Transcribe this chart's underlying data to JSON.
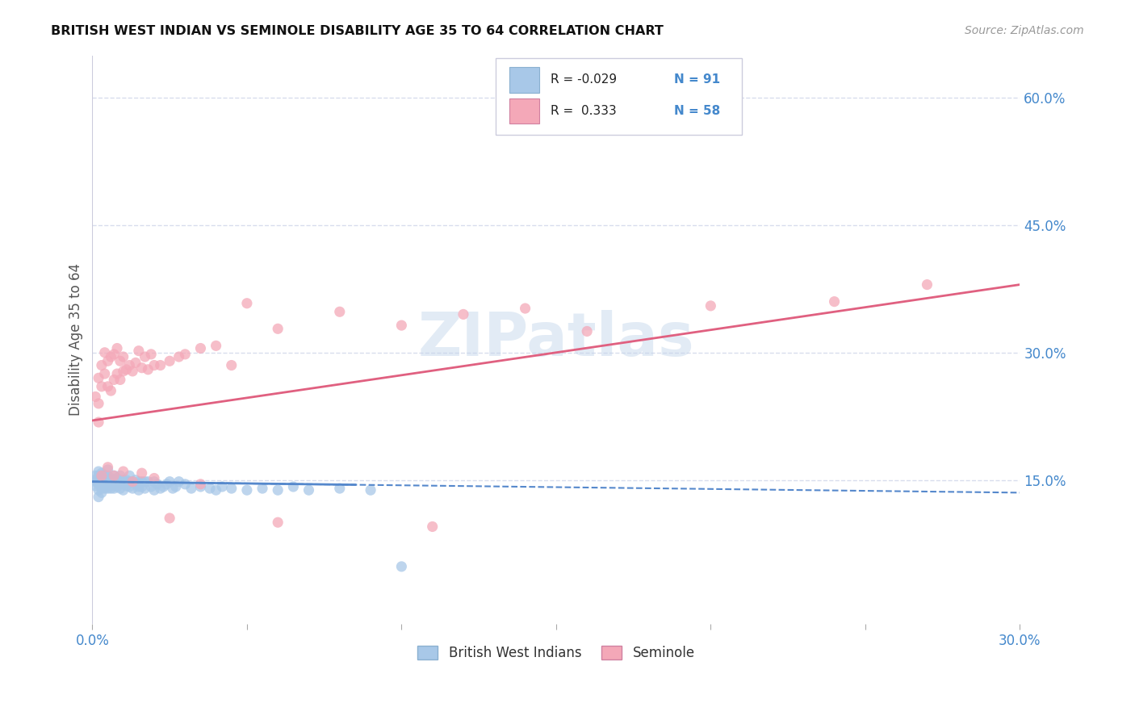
{
  "title": "BRITISH WEST INDIAN VS SEMINOLE DISABILITY AGE 35 TO 64 CORRELATION CHART",
  "source": "Source: ZipAtlas.com",
  "ylabel": "Disability Age 35 to 64",
  "xlim": [
    0.0,
    0.3
  ],
  "ylim": [
    -0.02,
    0.65
  ],
  "xticks": [
    0.0,
    0.05,
    0.1,
    0.15,
    0.2,
    0.25,
    0.3
  ],
  "xtick_labels": [
    "0.0%",
    "",
    "",
    "",
    "",
    "",
    "30.0%"
  ],
  "yticks": [
    0.15,
    0.3,
    0.45,
    0.6
  ],
  "ytick_labels": [
    "15.0%",
    "30.0%",
    "45.0%",
    "60.0%"
  ],
  "watermark": "ZIPatlas",
  "color_bwi": "#a8c8e8",
  "color_seminole": "#f4a8b8",
  "color_bwi_line": "#5588cc",
  "color_seminole_line": "#e06080",
  "color_axis_labels": "#4488cc",
  "grid_color": "#d8dded",
  "bwi_scatter_x": [
    0.001,
    0.001,
    0.001,
    0.001,
    0.002,
    0.002,
    0.002,
    0.002,
    0.002,
    0.002,
    0.002,
    0.003,
    0.003,
    0.003,
    0.003,
    0.003,
    0.003,
    0.003,
    0.004,
    0.004,
    0.004,
    0.004,
    0.004,
    0.005,
    0.005,
    0.005,
    0.005,
    0.005,
    0.005,
    0.006,
    0.006,
    0.006,
    0.006,
    0.007,
    0.007,
    0.007,
    0.007,
    0.007,
    0.008,
    0.008,
    0.008,
    0.009,
    0.009,
    0.009,
    0.01,
    0.01,
    0.01,
    0.01,
    0.011,
    0.011,
    0.012,
    0.012,
    0.012,
    0.013,
    0.013,
    0.014,
    0.014,
    0.015,
    0.015,
    0.015,
    0.016,
    0.016,
    0.017,
    0.017,
    0.018,
    0.019,
    0.02,
    0.02,
    0.021,
    0.022,
    0.023,
    0.024,
    0.025,
    0.026,
    0.027,
    0.028,
    0.03,
    0.032,
    0.035,
    0.038,
    0.04,
    0.042,
    0.045,
    0.05,
    0.055,
    0.06,
    0.065,
    0.07,
    0.08,
    0.09,
    0.1
  ],
  "bwi_scatter_y": [
    0.15,
    0.148,
    0.155,
    0.143,
    0.152,
    0.148,
    0.155,
    0.145,
    0.16,
    0.138,
    0.13,
    0.15,
    0.145,
    0.155,
    0.14,
    0.148,
    0.158,
    0.135,
    0.15,
    0.145,
    0.148,
    0.155,
    0.14,
    0.15,
    0.143,
    0.148,
    0.155,
    0.14,
    0.162,
    0.148,
    0.152,
    0.145,
    0.14,
    0.15,
    0.145,
    0.148,
    0.14,
    0.155,
    0.148,
    0.152,
    0.142,
    0.148,
    0.14,
    0.155,
    0.15,
    0.145,
    0.148,
    0.138,
    0.15,
    0.143,
    0.148,
    0.142,
    0.155,
    0.148,
    0.14,
    0.15,
    0.145,
    0.148,
    0.142,
    0.138,
    0.148,
    0.142,
    0.148,
    0.14,
    0.148,
    0.142,
    0.148,
    0.138,
    0.145,
    0.14,
    0.142,
    0.145,
    0.148,
    0.14,
    0.142,
    0.148,
    0.145,
    0.14,
    0.142,
    0.14,
    0.138,
    0.142,
    0.14,
    0.138,
    0.14,
    0.138,
    0.142,
    0.138,
    0.14,
    0.138,
    0.048
  ],
  "seminole_scatter_x": [
    0.001,
    0.002,
    0.002,
    0.003,
    0.003,
    0.004,
    0.004,
    0.005,
    0.005,
    0.006,
    0.006,
    0.007,
    0.007,
    0.008,
    0.008,
    0.009,
    0.009,
    0.01,
    0.01,
    0.011,
    0.012,
    0.013,
    0.014,
    0.015,
    0.016,
    0.017,
    0.018,
    0.019,
    0.02,
    0.022,
    0.025,
    0.028,
    0.03,
    0.035,
    0.04,
    0.045,
    0.05,
    0.06,
    0.08,
    0.1,
    0.12,
    0.14,
    0.16,
    0.2,
    0.24,
    0.27,
    0.002,
    0.003,
    0.005,
    0.007,
    0.01,
    0.013,
    0.016,
    0.02,
    0.025,
    0.035,
    0.06,
    0.11
  ],
  "seminole_scatter_y": [
    0.248,
    0.27,
    0.24,
    0.285,
    0.26,
    0.3,
    0.275,
    0.26,
    0.29,
    0.255,
    0.295,
    0.268,
    0.298,
    0.275,
    0.305,
    0.268,
    0.29,
    0.278,
    0.295,
    0.28,
    0.285,
    0.278,
    0.288,
    0.302,
    0.282,
    0.295,
    0.28,
    0.298,
    0.285,
    0.285,
    0.29,
    0.295,
    0.298,
    0.305,
    0.308,
    0.285,
    0.358,
    0.328,
    0.348,
    0.332,
    0.345,
    0.352,
    0.325,
    0.355,
    0.36,
    0.38,
    0.218,
    0.155,
    0.165,
    0.155,
    0.16,
    0.148,
    0.158,
    0.152,
    0.105,
    0.145,
    0.1,
    0.095
  ]
}
